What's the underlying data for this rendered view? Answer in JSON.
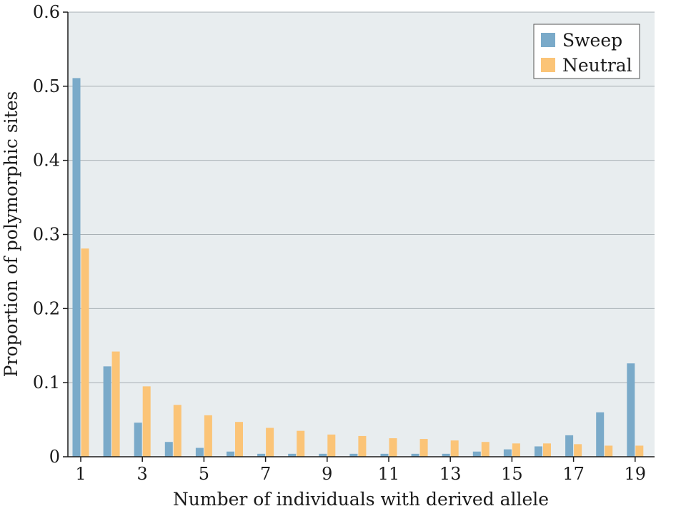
{
  "chart_data": {
    "type": "bar",
    "xlabel": "Number of individuals with derived allele",
    "ylabel": "Proportion of polymorphic sites",
    "ylim": [
      0,
      0.6
    ],
    "yticks": [
      "0",
      "0.1",
      "0.2",
      "0.3",
      "0.4",
      "0.5",
      "0.6"
    ],
    "categories": [
      1,
      2,
      3,
      4,
      5,
      6,
      7,
      8,
      9,
      10,
      11,
      12,
      13,
      14,
      15,
      16,
      17,
      18,
      19
    ],
    "xtick_labels": [
      "1",
      "3",
      "5",
      "7",
      "9",
      "11",
      "13",
      "15",
      "17",
      "19"
    ],
    "grid": true,
    "legend_position": "top-right",
    "series": [
      {
        "name": "Sweep",
        "color": "#7aaac9",
        "values": [
          0.511,
          0.122,
          0.046,
          0.02,
          0.012,
          0.007,
          0.004,
          0.004,
          0.004,
          0.004,
          0.004,
          0.004,
          0.004,
          0.007,
          0.01,
          0.014,
          0.029,
          0.06,
          0.126
        ]
      },
      {
        "name": "Neutral",
        "color": "#fbc477",
        "values": [
          0.281,
          0.142,
          0.095,
          0.07,
          0.056,
          0.047,
          0.039,
          0.035,
          0.03,
          0.028,
          0.025,
          0.024,
          0.022,
          0.02,
          0.018,
          0.018,
          0.017,
          0.015,
          0.015
        ]
      }
    ]
  },
  "colors": {
    "plot_background": "#e8edef",
    "gridline": "#a8b0b4",
    "axis": "#1a1a1a"
  }
}
